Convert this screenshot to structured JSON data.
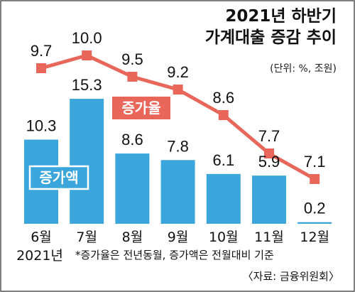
{
  "chart_data": {
    "type": "bar",
    "title_line1": "2021년 하반기",
    "title_line2": "가계대출 증감 추이",
    "unit_note": "(단위: %, 조원)",
    "categories": [
      "6월",
      "7월",
      "8월",
      "9월",
      "10월",
      "11월",
      "12월"
    ],
    "first_category_year": "2021년",
    "bar_series": {
      "name": "증가액",
      "values": [
        10.3,
        15.3,
        8.6,
        7.8,
        6.1,
        5.9,
        0.2
      ]
    },
    "line_series": {
      "name": "증가율",
      "values": [
        9.7,
        10.0,
        9.5,
        9.2,
        8.6,
        7.7,
        7.1
      ]
    },
    "bar_value_labels": [
      "10.3",
      "15.3",
      "8.6",
      "7.8",
      "6.1",
      "5.9",
      "0.2"
    ],
    "line_value_labels": [
      "9.7",
      "10.0",
      "9.5",
      "9.2",
      "8.6",
      "7.7",
      "7.1"
    ],
    "footnote": "*증가율은 전년동월, 증가액은 전월대비 기준",
    "source": "〈자료: 금융위원회〉",
    "colors": {
      "bar": "#3ba6dc",
      "line": "#e8675a",
      "frame": "#555555"
    }
  }
}
